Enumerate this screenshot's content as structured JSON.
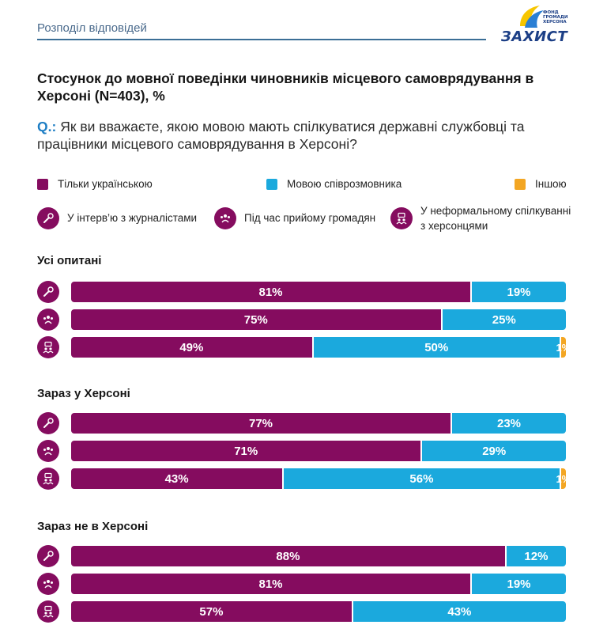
{
  "header": {
    "title": "Розподіл відповідей"
  },
  "logo": {
    "word": "ЗАХИСТ",
    "small_lines": [
      "ФОНД",
      "ГРОМАДИ",
      "ХЕРСОНА"
    ]
  },
  "colors": {
    "ukrainian": "#850c5f",
    "interlocutor": "#1ba9dd",
    "other": "#f3a623",
    "header_line": "#3b6e96",
    "question_prefix": "#1e7ec4"
  },
  "chart_data": {
    "type": "bar",
    "orientation": "horizontal",
    "stacked": true,
    "percent": true,
    "title": "Стосунок до мовної поведінки чиновників місцевого самоврядування в Херсоні (N=403), %",
    "question_prefix": "Q.:",
    "question": "Як ви вважаєте, якою мовою мають спілкуватися державні службовці та працівники місцевого самоврядування в Херсоні?",
    "legend": {
      "series": [
        {
          "key": "ukrainian",
          "label": "Тільки українською",
          "color": "#850c5f"
        },
        {
          "key": "interlocutor",
          "label": "Мовою співрозмовника",
          "color": "#1ba9dd"
        },
        {
          "key": "other",
          "label": "Іншою",
          "color": "#f3a623"
        }
      ],
      "situations": [
        {
          "key": "interview",
          "label": "У інтерв’ю з журналістами",
          "icon": "microphone-icon"
        },
        {
          "key": "reception",
          "label": "Під час прийому громадян",
          "icon": "group-icon"
        },
        {
          "key": "informal",
          "label": "У неформальному спілкуванні з херсонцями",
          "icon": "chat-people-icon"
        }
      ]
    },
    "groups": [
      {
        "title": "Усі опитані",
        "rows": [
          {
            "situation": "interview",
            "ukrainian": 81,
            "interlocutor": 19,
            "other": 0
          },
          {
            "situation": "reception",
            "ukrainian": 75,
            "interlocutor": 25,
            "other": 0
          },
          {
            "situation": "informal",
            "ukrainian": 49,
            "interlocutor": 50,
            "other": 1
          }
        ]
      },
      {
        "title": "Зараз у Херсоні",
        "rows": [
          {
            "situation": "interview",
            "ukrainian": 77,
            "interlocutor": 23,
            "other": 0
          },
          {
            "situation": "reception",
            "ukrainian": 71,
            "interlocutor": 29,
            "other": 0
          },
          {
            "situation": "informal",
            "ukrainian": 43,
            "interlocutor": 56,
            "other": 1
          }
        ]
      },
      {
        "title": "Зараз не в Херсоні",
        "rows": [
          {
            "situation": "interview",
            "ukrainian": 88,
            "interlocutor": 12,
            "other": 0
          },
          {
            "situation": "reception",
            "ukrainian": 81,
            "interlocutor": 19,
            "other": 0
          },
          {
            "situation": "informal",
            "ukrainian": 57,
            "interlocutor": 43,
            "other": 0
          }
        ]
      }
    ]
  }
}
